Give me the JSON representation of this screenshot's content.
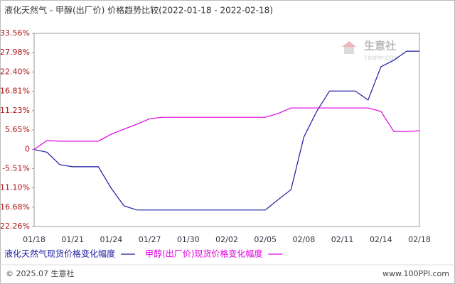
{
  "chart_data": {
    "type": "line",
    "title": "液化天然气 - 甲醇(出厂价) 价格趋势比较(2022-01-18 - 2022-02-18)",
    "categories": [
      "01/18",
      null,
      null,
      "01/21",
      null,
      null,
      "01/24",
      null,
      null,
      "01/27",
      null,
      null,
      "01/30",
      null,
      null,
      "02/02",
      null,
      null,
      "02/05",
      null,
      null,
      "02/08",
      null,
      null,
      "02/11",
      null,
      null,
      "02/14",
      null,
      null,
      "02/18"
    ],
    "series": [
      {
        "name": "液化天然气现货价格变化幅度",
        "color": "#1c1ca0",
        "values": [
          0,
          -0.8,
          -4.4,
          -5.0,
          -5.0,
          -5.0,
          -11.2,
          -16.3,
          -17.5,
          -17.5,
          -17.5,
          -17.5,
          -17.5,
          -17.5,
          -17.5,
          -17.5,
          -17.5,
          -17.5,
          -17.5,
          -14.5,
          -11.6,
          3.6,
          11.0,
          16.9,
          16.9,
          16.9,
          14.3,
          23.9,
          25.8,
          28.4,
          28.4
        ]
      },
      {
        "name": "甲醇(出厂价)现货价格变化幅度",
        "color": "#e000e0",
        "values": [
          0,
          2.6,
          2.4,
          2.4,
          2.4,
          2.4,
          4.4,
          5.9,
          7.3,
          8.9,
          9.3,
          9.3,
          9.3,
          9.3,
          9.3,
          9.3,
          9.3,
          9.3,
          9.3,
          10.4,
          12.0,
          12.0,
          12.0,
          12.0,
          12.0,
          12.0,
          12.0,
          11.0,
          5.2,
          5.2,
          5.4
        ]
      }
    ],
    "ylim": [
      -22.26,
      33.56
    ],
    "yticks": [
      {
        "value": 33.56,
        "label": "33.56%"
      },
      {
        "value": 27.98,
        "label": "27.98%"
      },
      {
        "value": 22.4,
        "label": "22.40%"
      },
      {
        "value": 16.81,
        "label": "16.81%"
      },
      {
        "value": 11.23,
        "label": "11.23%"
      },
      {
        "value": 5.65,
        "label": "5.65%"
      },
      0,
      {
        "value": -5.51,
        "label": "-5.51%"
      },
      {
        "value": -11.1,
        "label": "-11.10%"
      },
      {
        "value": -16.68,
        "label": "-16.68%"
      },
      {
        "value": -22.26,
        "label": "-22.26%"
      }
    ],
    "grid": false
  },
  "watermark": {
    "text": "生意社",
    "sub": "100PPI.COM"
  },
  "footer": {
    "left": "© 2025.07 生意社",
    "right": "www.100PPI.com"
  }
}
